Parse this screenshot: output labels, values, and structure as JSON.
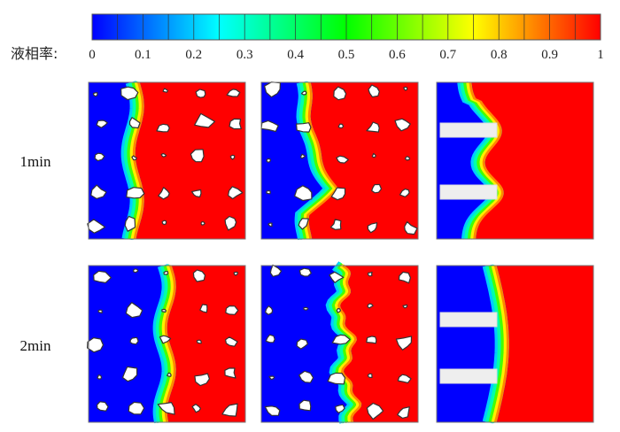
{
  "colorbar": {
    "label": "液相率:",
    "ticks": [
      "0",
      "0.1",
      "0.2",
      "0.3",
      "0.4",
      "0.5",
      "0.6",
      "0.7",
      "0.8",
      "0.9",
      "1"
    ],
    "range": [
      0,
      1
    ],
    "segments": 20,
    "colormap": [
      "#0000ff",
      "#00ffff",
      "#00ff00",
      "#ffff00",
      "#ff0000"
    ]
  },
  "rows": [
    {
      "label": "1min"
    },
    {
      "label": "2min"
    }
  ],
  "colors": {
    "solid": "#0000ff",
    "liquid": "#ff0000",
    "particle": "#ffffff",
    "fin": "#eeeeee"
  }
}
